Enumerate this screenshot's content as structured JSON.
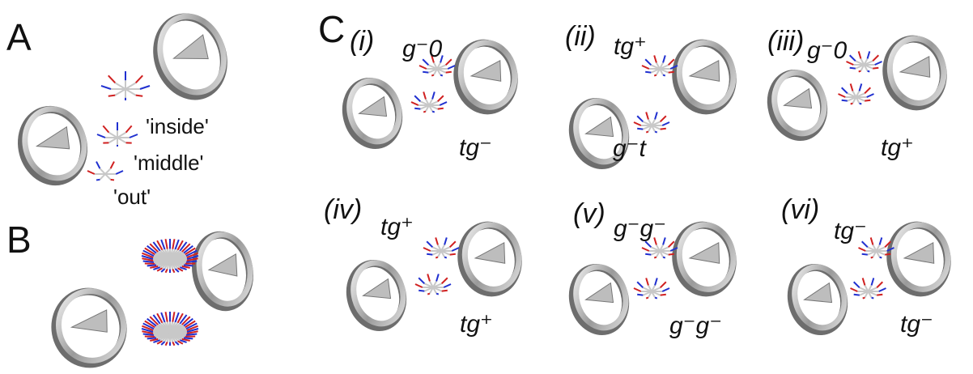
{
  "panels": [
    {
      "letter": "A",
      "labels": [
        "'inside'",
        "'middle'",
        "'out'"
      ]
    },
    {
      "letter": "B"
    },
    {
      "letter": "C",
      "subpanels": [
        {
          "tag": "(i)",
          "labels": [
            "g⁻0",
            "tg⁻"
          ]
        },
        {
          "tag": "(ii)",
          "labels": [
            "tg⁺",
            "g⁻t"
          ]
        },
        {
          "tag": "(iii)",
          "labels": [
            "g⁻0",
            "tg⁺"
          ]
        },
        {
          "tag": "(iv)",
          "labels": [
            "tg⁺",
            "tg⁺"
          ]
        },
        {
          "tag": "(v)",
          "labels": [
            "g⁻g⁻",
            "g⁻g⁻"
          ]
        },
        {
          "tag": "(vi)",
          "labels": [
            "tg⁻",
            "tg⁻"
          ]
        }
      ]
    }
  ]
}
